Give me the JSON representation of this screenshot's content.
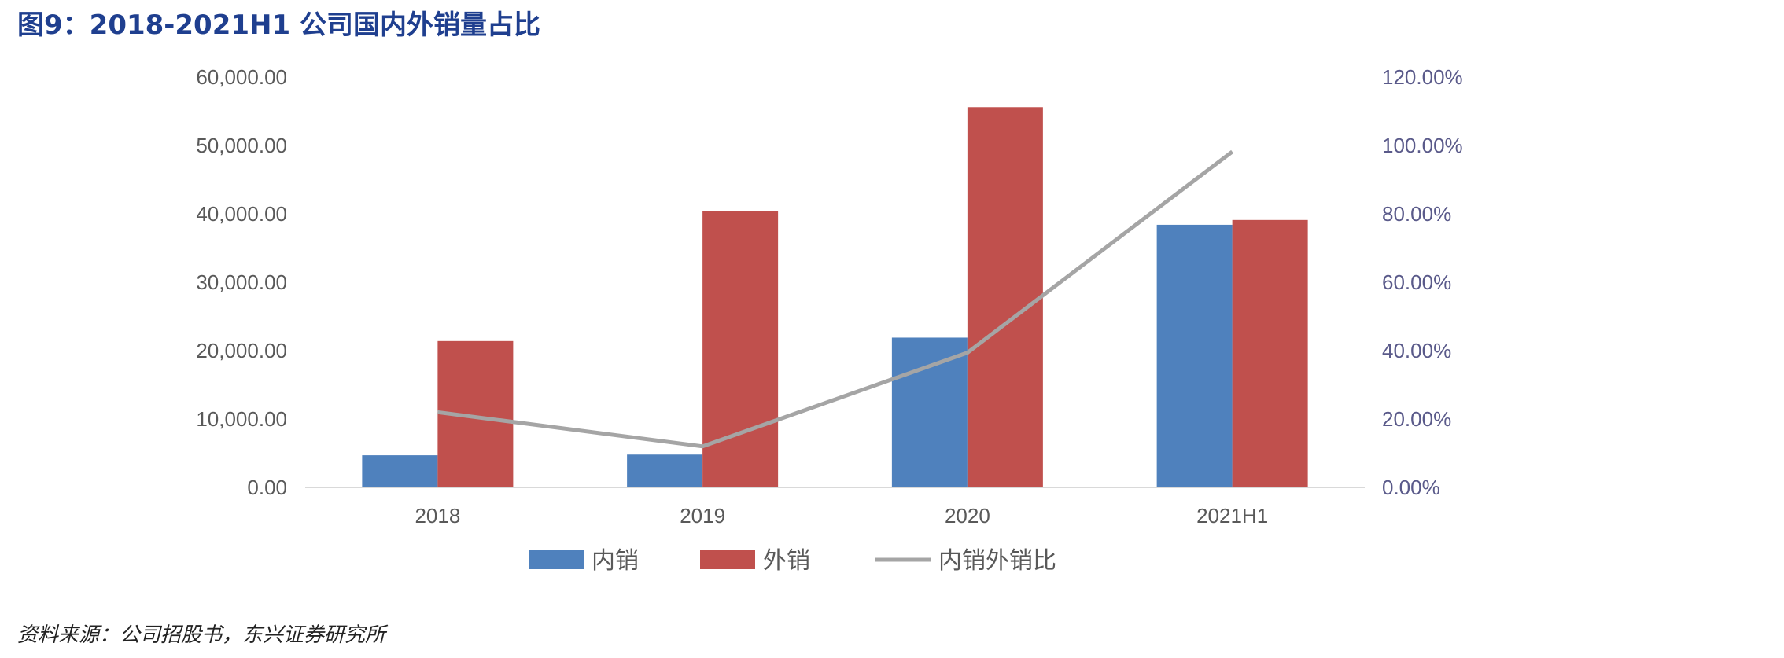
{
  "figure": {
    "title": "图9：2018-2021H1 公司国内外销量占比",
    "source": "资料来源：公司招股书，东兴证券研究所"
  },
  "chart_data": {
    "type": "bar",
    "categories": [
      "2018",
      "2019",
      "2020",
      "2021H1"
    ],
    "series": [
      {
        "name": "内销",
        "type": "bar",
        "axis": "left",
        "color": "#4f81bd",
        "values": [
          4700,
          4800,
          21900,
          38400
        ]
      },
      {
        "name": "外销",
        "type": "bar",
        "axis": "left",
        "color": "#c0504d",
        "values": [
          21400,
          40400,
          55600,
          39100
        ]
      },
      {
        "name": "内销外销比",
        "type": "line",
        "axis": "right",
        "color": "#a5a5a5",
        "values": [
          0.22,
          0.12,
          0.394,
          0.982
        ]
      }
    ],
    "y_left": {
      "min": 0,
      "max": 60000,
      "ticks": [
        "0.00",
        "10,000.00",
        "20,000.00",
        "30,000.00",
        "40,000.00",
        "50,000.00",
        "60,000.00"
      ]
    },
    "y_right": {
      "min": 0,
      "max": 1.2,
      "ticks": [
        "0.00%",
        "20.00%",
        "40.00%",
        "60.00%",
        "80.00%",
        "100.00%",
        "120.00%"
      ]
    },
    "grid": false,
    "legend_position": "bottom"
  }
}
